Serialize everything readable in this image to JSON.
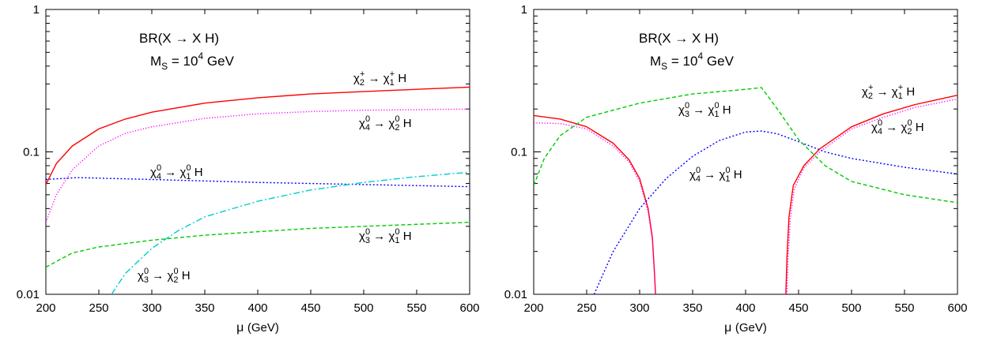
{
  "chart_data": [
    {
      "type": "line",
      "yscale": "log",
      "xlim": [
        200,
        600
      ],
      "ylim": [
        0.01,
        1
      ],
      "xticks": [
        "200",
        "250",
        "300",
        "350",
        "400",
        "450",
        "500",
        "550",
        "600"
      ],
      "yticks": [
        "0.01",
        "0.1",
        "1"
      ],
      "xlabel_sym": "μ",
      "xlabel_unit": "(GeV)",
      "title_line1": "BR(X → X H)",
      "title_line2_base": "M",
      "title_line2_sub": "S",
      "title_line2_mid": " = 10",
      "title_line2_sup": "4",
      "title_line2_end": " GeV",
      "grid": false,
      "series": [
        {
          "key": "c2p_c1p",
          "color": "#ff0000",
          "dash": "",
          "x": [
            200,
            210,
            225,
            250,
            275,
            300,
            350,
            400,
            450,
            500,
            550,
            600
          ],
          "y": [
            0.059,
            0.083,
            0.11,
            0.145,
            0.17,
            0.19,
            0.22,
            0.24,
            0.255,
            0.265,
            0.275,
            0.285
          ],
          "label": {
            "chi1": "χ",
            "sub1": "2",
            "sup1": "+",
            "arrow": " → ",
            "chi2": "χ",
            "sub2": "1",
            "sup2": "+",
            "end": " H"
          }
        },
        {
          "key": "c40_c20",
          "color": "#ff00ff",
          "dash": "1.2,2.2",
          "x": [
            200,
            210,
            225,
            250,
            275,
            300,
            350,
            400,
            450,
            500,
            550,
            600
          ],
          "y": [
            0.032,
            0.05,
            0.075,
            0.11,
            0.135,
            0.15,
            0.172,
            0.185,
            0.192,
            0.196,
            0.198,
            0.2
          ],
          "label": {
            "chi1": "χ",
            "sub1": "4",
            "sup1": "0",
            "arrow": " → ",
            "chi2": "χ",
            "sub2": "2",
            "sup2": "0",
            "end": " H"
          }
        },
        {
          "key": "c40_c10",
          "color": "#0000ff",
          "dash": "2,2.5",
          "x": [
            200,
            230,
            300,
            400,
            500,
            600
          ],
          "y": [
            0.064,
            0.066,
            0.064,
            0.061,
            0.059,
            0.057
          ],
          "label": {
            "chi1": "χ",
            "sub1": "4",
            "sup1": "0",
            "arrow": " → ",
            "chi2": "χ",
            "sub2": "1",
            "sup2": "0",
            "end": " H"
          }
        },
        {
          "key": "c30_c10",
          "color": "#00cc00",
          "dash": "5,3",
          "x": [
            200,
            225,
            250,
            300,
            350,
            400,
            450,
            500,
            550,
            600
          ],
          "y": [
            0.0155,
            0.0195,
            0.0215,
            0.024,
            0.026,
            0.0275,
            0.029,
            0.03,
            0.031,
            0.032
          ],
          "label": {
            "chi1": "χ",
            "sub1": "3",
            "sup1": "0",
            "arrow": " → ",
            "chi2": "χ",
            "sub2": "1",
            "sup2": "0",
            "end": " H"
          }
        },
        {
          "key": "c30_c20",
          "color": "#00cccc",
          "dash": "8,3,2,3",
          "x": [
            262,
            275,
            300,
            325,
            350,
            400,
            450,
            500,
            550,
            600
          ],
          "y": [
            0.01,
            0.014,
            0.021,
            0.028,
            0.035,
            0.045,
            0.054,
            0.061,
            0.067,
            0.072
          ],
          "label": {
            "chi1": "χ",
            "sub1": "3",
            "sup1": "0",
            "arrow": " → ",
            "chi2": "χ",
            "sub2": "2",
            "sup2": "0",
            "end": " H"
          }
        }
      ]
    },
    {
      "type": "line",
      "yscale": "log",
      "xlim": [
        200,
        600
      ],
      "ylim": [
        0.01,
        1
      ],
      "xticks": [
        "200",
        "250",
        "300",
        "350",
        "400",
        "450",
        "500",
        "550",
        "600"
      ],
      "yticks": [
        "0.01",
        "0.1",
        "1"
      ],
      "xlabel_sym": "μ",
      "xlabel_unit": "(GeV)",
      "title_line1": "BR(X → X H)",
      "title_line2_base": "M",
      "title_line2_sub": "S",
      "title_line2_mid": " = 10",
      "title_line2_sup": "4",
      "title_line2_end": " GeV",
      "grid": false,
      "series": [
        {
          "key": "c2p_c1p",
          "color": "#ff0000",
          "dash": "",
          "segments": [
            {
              "x": [
                200,
                225,
                250,
                275,
                290,
                300,
                308,
                312,
                314,
                315
              ],
              "y": [
                0.18,
                0.17,
                0.15,
                0.115,
                0.088,
                0.065,
                0.04,
                0.025,
                0.014,
                0.01
              ]
            },
            {
              "x": [
                438,
                439,
                441,
                445,
                455,
                470,
                500,
                530,
                560,
                600
              ],
              "y": [
                0.01,
                0.018,
                0.035,
                0.058,
                0.08,
                0.105,
                0.15,
                0.185,
                0.215,
                0.25
              ]
            }
          ],
          "label": {
            "chi1": "χ",
            "sub1": "2",
            "sup1": "+",
            "arrow": " → ",
            "chi2": "χ",
            "sub2": "1",
            "sup2": "+",
            "end": " H"
          }
        },
        {
          "key": "c40_c20",
          "color": "#ff00ff",
          "dash": "1.2,2.2",
          "segments": [
            {
              "x": [
                200,
                225,
                250,
                275,
                290,
                300,
                308,
                312,
                314,
                315
              ],
              "y": [
                0.16,
                0.158,
                0.145,
                0.11,
                0.085,
                0.062,
                0.038,
                0.024,
                0.014,
                0.01
              ]
            },
            {
              "x": [
                439,
                440,
                442,
                446,
                455,
                470,
                500,
                530,
                560,
                600
              ],
              "y": [
                0.01,
                0.017,
                0.033,
                0.055,
                0.077,
                0.1,
                0.145,
                0.175,
                0.205,
                0.235
              ]
            }
          ],
          "label": {
            "chi1": "χ",
            "sub1": "4",
            "sup1": "0",
            "arrow": " → ",
            "chi2": "χ",
            "sub2": "2",
            "sup2": "0",
            "end": " H"
          }
        },
        {
          "key": "c40_c10",
          "color": "#0000ff",
          "dash": "2,2.5",
          "x": [
            257,
            275,
            300,
            325,
            350,
            375,
            400,
            415,
            430,
            450,
            475,
            500,
            550,
            600
          ],
          "y": [
            0.01,
            0.02,
            0.04,
            0.065,
            0.093,
            0.12,
            0.138,
            0.14,
            0.134,
            0.118,
            0.1,
            0.09,
            0.078,
            0.07
          ],
          "label": {
            "chi1": "χ",
            "sub1": "4",
            "sup1": "0",
            "arrow": " → ",
            "chi2": "χ",
            "sub2": "1",
            "sup2": "0",
            "end": " H"
          }
        },
        {
          "key": "c30_c10",
          "color": "#00cc00",
          "dash": "5,3",
          "x": [
            200,
            210,
            225,
            250,
            300,
            350,
            400,
            415,
            430,
            450,
            475,
            500,
            550,
            600
          ],
          "y": [
            0.058,
            0.09,
            0.13,
            0.175,
            0.22,
            0.255,
            0.275,
            0.283,
            0.2,
            0.122,
            0.08,
            0.062,
            0.05,
            0.044
          ],
          "label": {
            "chi1": "χ",
            "sub1": "3",
            "sup1": "0",
            "arrow": " → ",
            "chi2": "χ",
            "sub2": "1",
            "sup2": "0",
            "end": " H"
          }
        }
      ]
    }
  ]
}
